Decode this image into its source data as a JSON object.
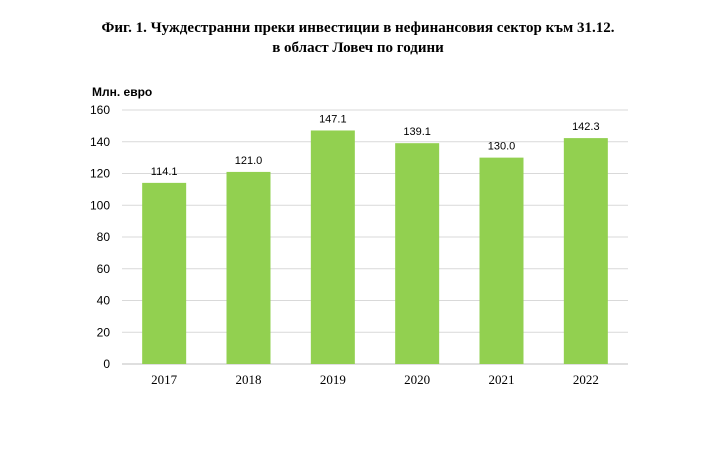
{
  "title_line1": "Фиг. 1. Чуждестранни преки инвестиции в нефинансовия сектор към 31.12.",
  "title_line2": "в област Ловеч по години",
  "chart_data": {
    "type": "bar",
    "title": "Фиг. 1. Чуждестранни преки инвестиции в нефинансовия сектор към 31.12. в област Ловеч по години",
    "ylabel": "Млн. евро",
    "xlabel": "",
    "categories": [
      "2017",
      "2018",
      "2019",
      "2020",
      "2021",
      "2022"
    ],
    "values": [
      114.1,
      121.0,
      147.1,
      139.1,
      130.0,
      142.3
    ],
    "data_labels": [
      "114.1",
      "121.0",
      "147.1",
      "139.1",
      "130.0",
      "142.3"
    ],
    "ylim": [
      0,
      160
    ],
    "yticks": [
      0,
      20,
      40,
      60,
      80,
      100,
      120,
      140,
      160
    ],
    "grid": true,
    "legend": "none",
    "bar_color": "#92D050",
    "grid_color": "#D9D9D9"
  }
}
